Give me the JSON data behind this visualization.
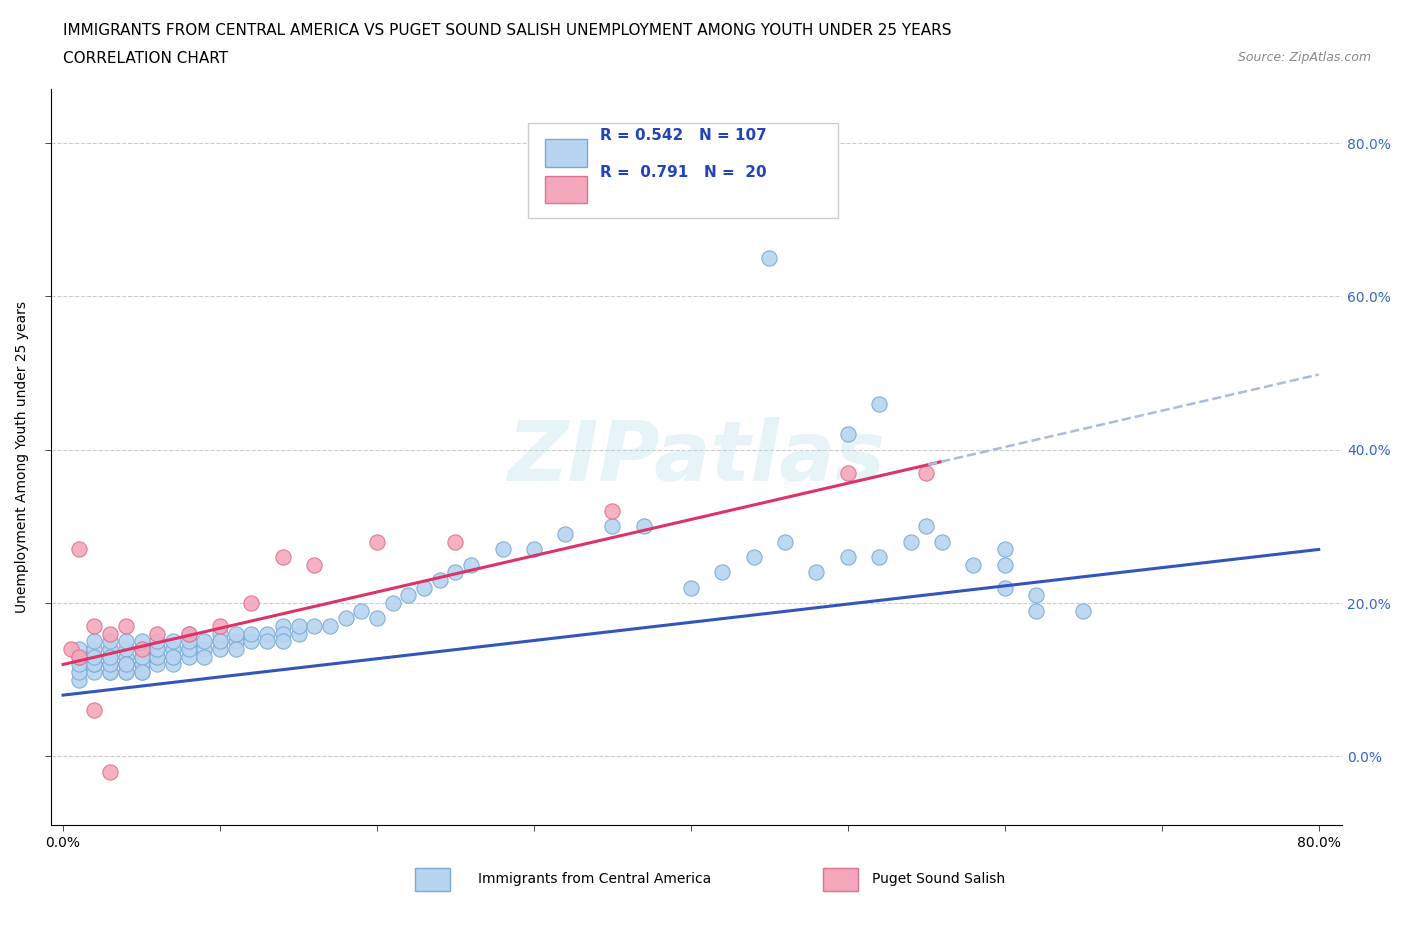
{
  "title_line1": "IMMIGRANTS FROM CENTRAL AMERICA VS PUGET SOUND SALISH UNEMPLOYMENT AMONG YOUTH UNDER 25 YEARS",
  "title_line2": "CORRELATION CHART",
  "source_text": "Source: ZipAtlas.com",
  "ylabel": "Unemployment Among Youth under 25 years",
  "watermark": "ZIPatlas",
  "blue_R": 0.542,
  "blue_N": 107,
  "pink_R": 0.791,
  "pink_N": 20,
  "blue_color": "#b8d4f0",
  "blue_edge_color": "#7aaad4",
  "pink_color": "#f4a8bc",
  "pink_edge_color": "#e07090",
  "blue_line_color": "#3355bb",
  "pink_line_color": "#dd3366",
  "pink_dash_color": "#aabbdd",
  "right_tick_color": "#3366cc",
  "legend_label_blue": "Immigrants from Central America",
  "legend_label_pink": "Puget Sound Salish",
  "background_color": "#ffffff",
  "grid_color": "#cccccc",
  "ytick_labels": [
    "0.0%",
    "20.0%",
    "40.0%",
    "60.0%",
    "80.0%"
  ],
  "blue_x": [
    0.01,
    0.01,
    0.01,
    0.01,
    0.01,
    0.02,
    0.02,
    0.02,
    0.02,
    0.02,
    0.02,
    0.02,
    0.03,
    0.03,
    0.03,
    0.03,
    0.03,
    0.03,
    0.03,
    0.03,
    0.04,
    0.04,
    0.04,
    0.04,
    0.04,
    0.04,
    0.04,
    0.04,
    0.05,
    0.05,
    0.05,
    0.05,
    0.05,
    0.05,
    0.05,
    0.05,
    0.06,
    0.06,
    0.06,
    0.06,
    0.06,
    0.06,
    0.07,
    0.07,
    0.07,
    0.07,
    0.07,
    0.08,
    0.08,
    0.08,
    0.08,
    0.08,
    0.09,
    0.09,
    0.09,
    0.1,
    0.1,
    0.1,
    0.1,
    0.11,
    0.11,
    0.11,
    0.12,
    0.12,
    0.13,
    0.13,
    0.14,
    0.14,
    0.14,
    0.15,
    0.15,
    0.16,
    0.17,
    0.18,
    0.19,
    0.2,
    0.21,
    0.22,
    0.23,
    0.24,
    0.25,
    0.26,
    0.28,
    0.3,
    0.32,
    0.35,
    0.37,
    0.4,
    0.42,
    0.44,
    0.46,
    0.48,
    0.5,
    0.52,
    0.54,
    0.56,
    0.58,
    0.6,
    0.62,
    0.65,
    0.45,
    0.52,
    0.5,
    0.55,
    0.6,
    0.6,
    0.62
  ],
  "blue_y": [
    0.1,
    0.11,
    0.12,
    0.13,
    0.14,
    0.11,
    0.12,
    0.13,
    0.14,
    0.15,
    0.12,
    0.13,
    0.11,
    0.12,
    0.13,
    0.14,
    0.15,
    0.11,
    0.12,
    0.13,
    0.11,
    0.12,
    0.13,
    0.14,
    0.15,
    0.12,
    0.11,
    0.12,
    0.11,
    0.12,
    0.13,
    0.14,
    0.15,
    0.12,
    0.13,
    0.11,
    0.13,
    0.14,
    0.12,
    0.13,
    0.14,
    0.15,
    0.13,
    0.14,
    0.15,
    0.12,
    0.13,
    0.14,
    0.13,
    0.14,
    0.15,
    0.16,
    0.14,
    0.15,
    0.13,
    0.15,
    0.14,
    0.16,
    0.15,
    0.15,
    0.16,
    0.14,
    0.15,
    0.16,
    0.16,
    0.15,
    0.17,
    0.16,
    0.15,
    0.16,
    0.17,
    0.17,
    0.17,
    0.18,
    0.19,
    0.18,
    0.2,
    0.21,
    0.22,
    0.23,
    0.24,
    0.25,
    0.27,
    0.27,
    0.29,
    0.3,
    0.3,
    0.22,
    0.24,
    0.26,
    0.28,
    0.24,
    0.26,
    0.26,
    0.28,
    0.28,
    0.25,
    0.27,
    0.19,
    0.19,
    0.65,
    0.46,
    0.42,
    0.3,
    0.25,
    0.22,
    0.21
  ],
  "pink_x": [
    0.005,
    0.01,
    0.01,
    0.02,
    0.02,
    0.03,
    0.03,
    0.04,
    0.05,
    0.06,
    0.08,
    0.1,
    0.12,
    0.14,
    0.16,
    0.2,
    0.25,
    0.35,
    0.5,
    0.55
  ],
  "pink_y": [
    0.14,
    0.13,
    0.27,
    0.06,
    0.17,
    -0.02,
    0.16,
    0.17,
    0.14,
    0.16,
    0.16,
    0.17,
    0.2,
    0.26,
    0.25,
    0.28,
    0.28,
    0.32,
    0.37,
    0.37
  ]
}
